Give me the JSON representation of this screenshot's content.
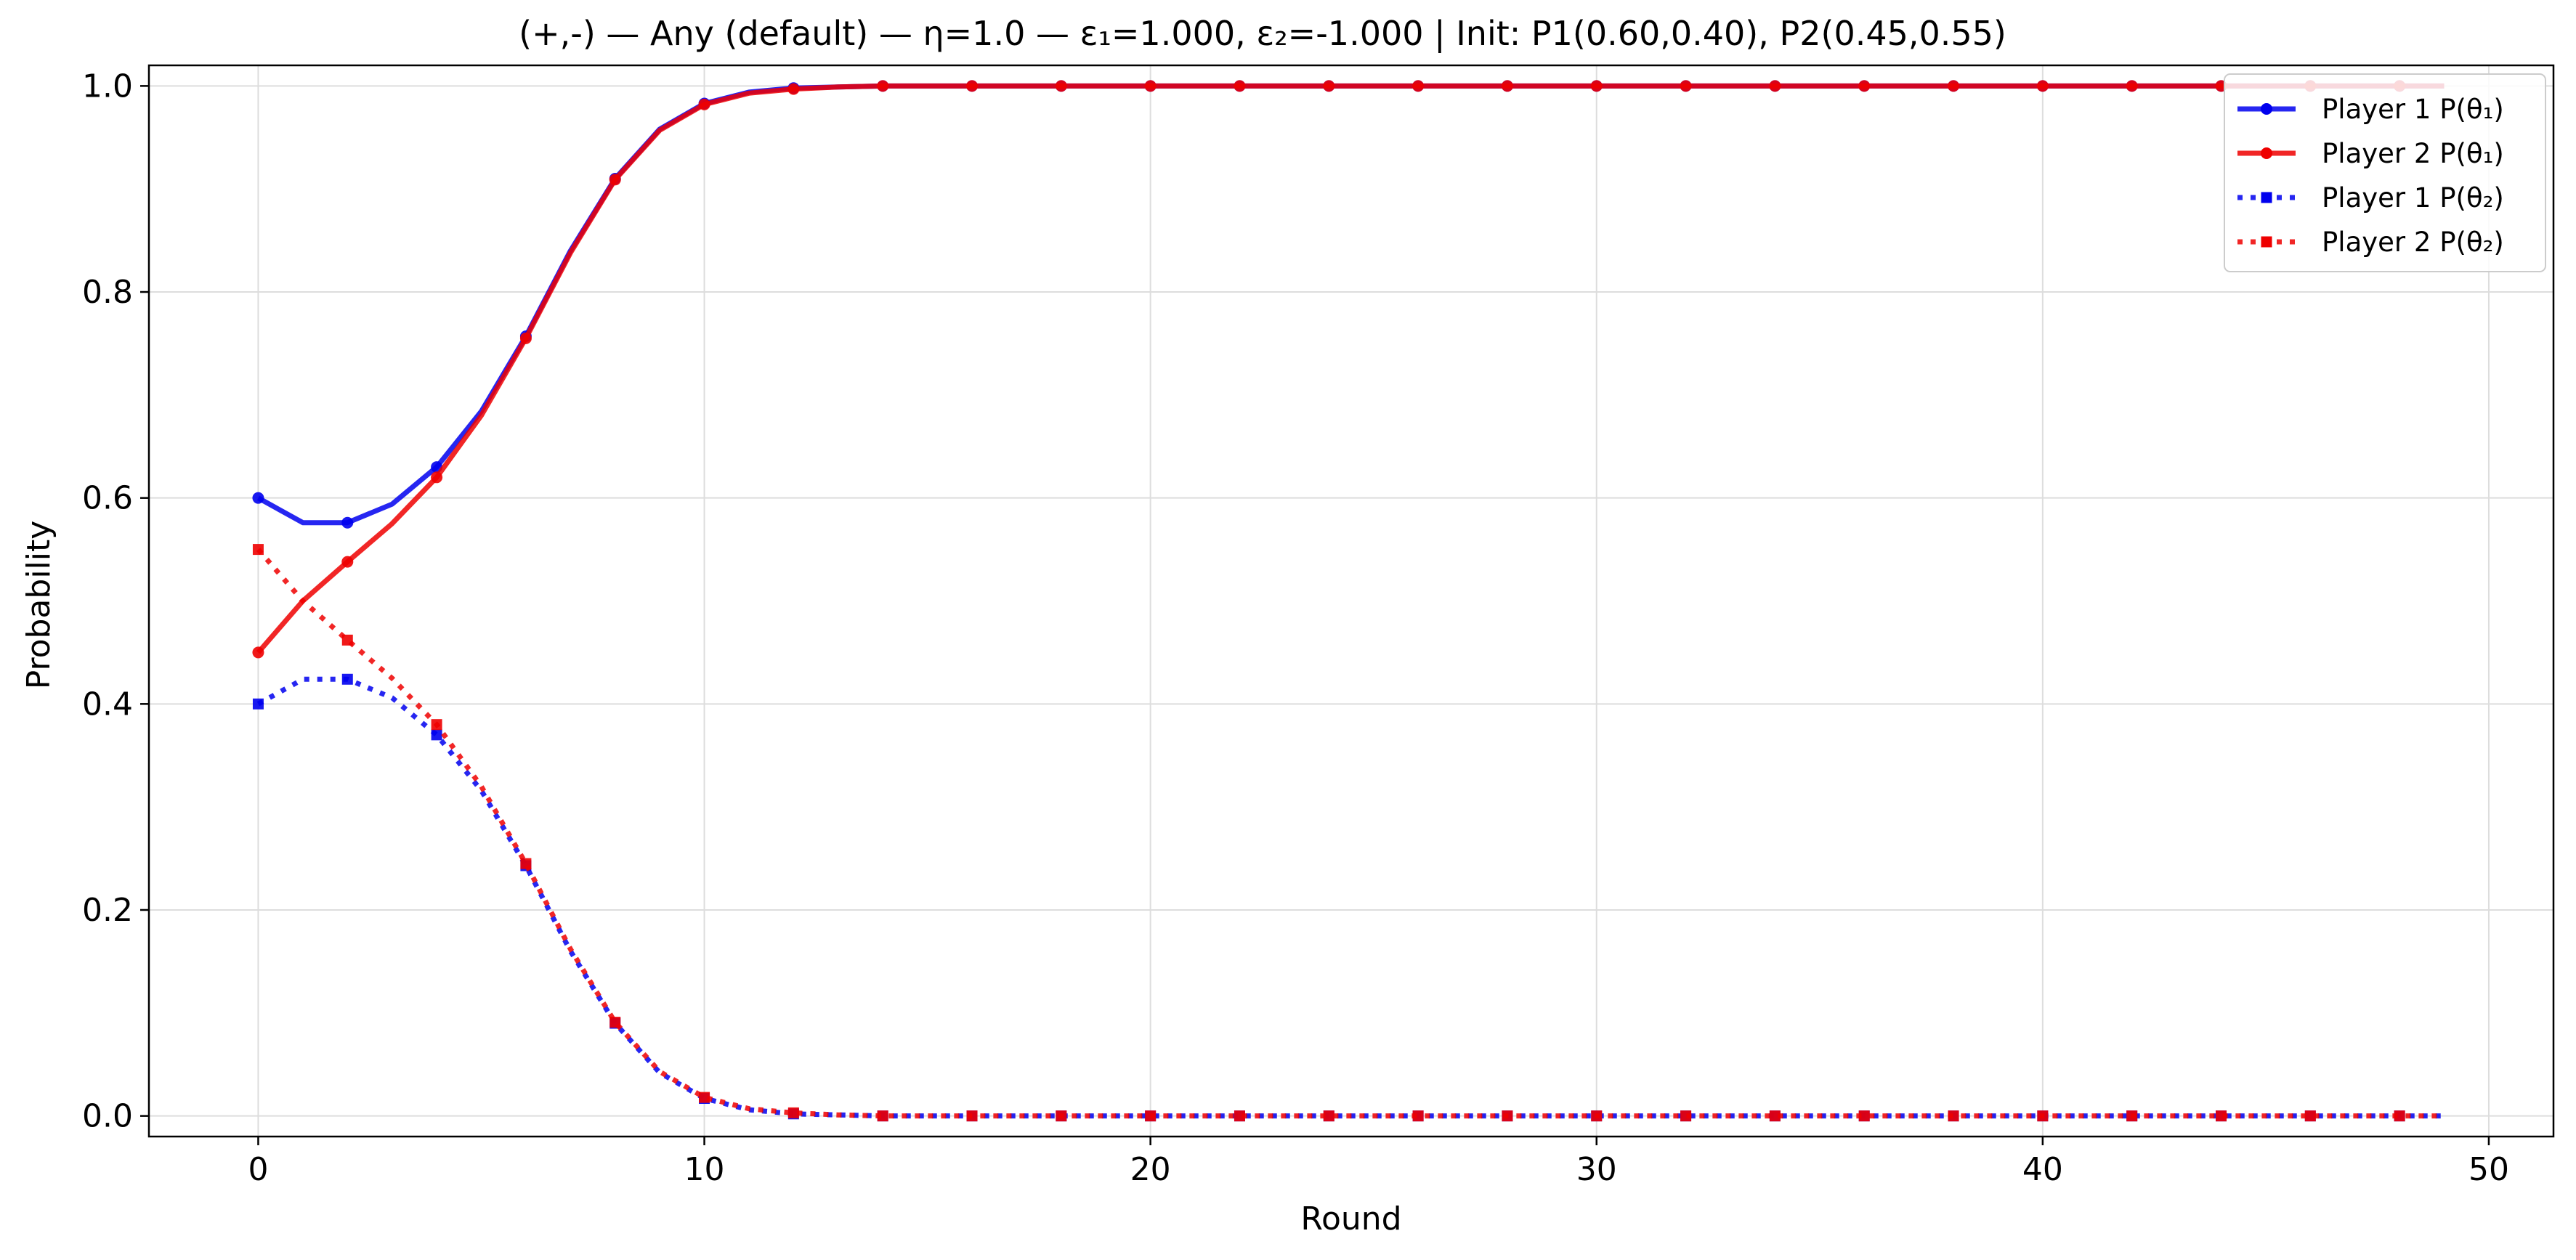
{
  "chart_data": {
    "type": "line",
    "title": "(+,-) — Any (default) — η=1.0 — ε₁=1.000, ε₂=-1.000 | Init: P1(0.60,0.40), P2(0.45,0.55)",
    "xlabel": "Round",
    "ylabel": "Probability",
    "xlim": [
      -2.45,
      51.45
    ],
    "ylim": [
      -0.02,
      1.02
    ],
    "xticks": [
      0,
      10,
      20,
      30,
      40,
      50
    ],
    "yticks": [
      0.0,
      0.2,
      0.4,
      0.6,
      0.8,
      1.0
    ],
    "xtick_labels": [
      "0",
      "10",
      "20",
      "30",
      "40",
      "50"
    ],
    "ytick_labels": [
      "0.0",
      "0.2",
      "0.4",
      "0.6",
      "0.8",
      "1.0"
    ],
    "grid": true,
    "legend_position": "top-right",
    "x": [
      0,
      1,
      2,
      3,
      4,
      5,
      6,
      7,
      8,
      9,
      10,
      11,
      12,
      13,
      14,
      15,
      16,
      17,
      18,
      19,
      20,
      21,
      22,
      23,
      24,
      25,
      26,
      27,
      28,
      29,
      30,
      31,
      32,
      33,
      34,
      35,
      36,
      37,
      38,
      39,
      40,
      41,
      42,
      43,
      44,
      45,
      46,
      47,
      48,
      49
    ],
    "series": [
      {
        "name": "Player 1 P(θ₁)",
        "color": "#0000ee",
        "style": "solid",
        "marker": "circle",
        "values": [
          0.6,
          0.576,
          0.576,
          0.594,
          0.63,
          0.684,
          0.757,
          0.84,
          0.91,
          0.958,
          0.983,
          0.994,
          0.998,
          0.999,
          1.0,
          1.0,
          1.0,
          1.0,
          1.0,
          1.0,
          1.0,
          1.0,
          1.0,
          1.0,
          1.0,
          1.0,
          1.0,
          1.0,
          1.0,
          1.0,
          1.0,
          1.0,
          1.0,
          1.0,
          1.0,
          1.0,
          1.0,
          1.0,
          1.0,
          1.0,
          1.0,
          1.0,
          1.0,
          1.0,
          1.0,
          1.0,
          1.0,
          1.0,
          1.0,
          1.0
        ]
      },
      {
        "name": "Player 2 P(θ₁)",
        "color": "#ee0000",
        "style": "solid",
        "marker": "circle",
        "values": [
          0.45,
          0.5,
          0.538,
          0.575,
          0.62,
          0.68,
          0.755,
          0.838,
          0.909,
          0.957,
          0.982,
          0.993,
          0.997,
          0.999,
          1.0,
          1.0,
          1.0,
          1.0,
          1.0,
          1.0,
          1.0,
          1.0,
          1.0,
          1.0,
          1.0,
          1.0,
          1.0,
          1.0,
          1.0,
          1.0,
          1.0,
          1.0,
          1.0,
          1.0,
          1.0,
          1.0,
          1.0,
          1.0,
          1.0,
          1.0,
          1.0,
          1.0,
          1.0,
          1.0,
          1.0,
          1.0,
          1.0,
          1.0,
          1.0,
          1.0
        ]
      },
      {
        "name": "Player 1 P(θ₂)",
        "color": "#0000ee",
        "style": "dotted",
        "marker": "square",
        "values": [
          0.4,
          0.424,
          0.424,
          0.406,
          0.37,
          0.316,
          0.243,
          0.16,
          0.09,
          0.042,
          0.017,
          0.006,
          0.002,
          0.001,
          0.0,
          0.0,
          0.0,
          0.0,
          0.0,
          0.0,
          0.0,
          0.0,
          0.0,
          0.0,
          0.0,
          0.0,
          0.0,
          0.0,
          0.0,
          0.0,
          0.0,
          0.0,
          0.0,
          0.0,
          0.0,
          0.0,
          0.0,
          0.0,
          0.0,
          0.0,
          0.0,
          0.0,
          0.0,
          0.0,
          0.0,
          0.0,
          0.0,
          0.0,
          0.0,
          0.0
        ]
      },
      {
        "name": "Player 2 P(θ₂)",
        "color": "#ee0000",
        "style": "dotted",
        "marker": "square",
        "values": [
          0.55,
          0.5,
          0.462,
          0.425,
          0.38,
          0.32,
          0.245,
          0.162,
          0.091,
          0.043,
          0.018,
          0.007,
          0.003,
          0.001,
          0.0,
          0.0,
          0.0,
          0.0,
          0.0,
          0.0,
          0.0,
          0.0,
          0.0,
          0.0,
          0.0,
          0.0,
          0.0,
          0.0,
          0.0,
          0.0,
          0.0,
          0.0,
          0.0,
          0.0,
          0.0,
          0.0,
          0.0,
          0.0,
          0.0,
          0.0,
          0.0,
          0.0,
          0.0,
          0.0,
          0.0,
          0.0,
          0.0,
          0.0,
          0.0,
          0.0
        ]
      }
    ]
  }
}
